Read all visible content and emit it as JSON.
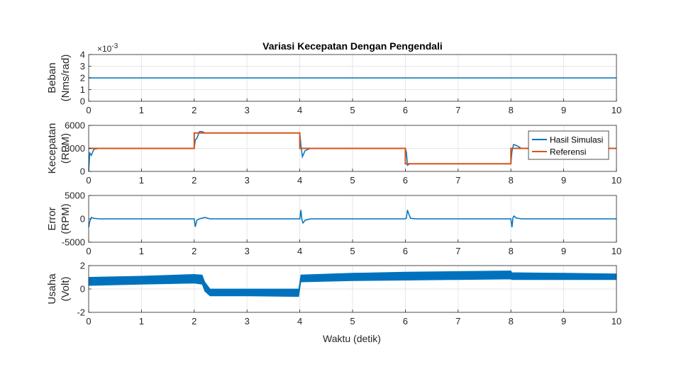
{
  "title": "Variasi Kecepatan Dengan Pengendali",
  "xlabel": "Waktu (detik)",
  "colors": {
    "sim": "#0072BD",
    "ref": "#D95319",
    "grid": "#e6e6e6",
    "axis": "#262626"
  },
  "chart_data": [
    {
      "type": "line",
      "ylabel": [
        "Beban",
        "(Nms/rad)"
      ],
      "exponent": "×10-3",
      "xlim": [
        0,
        10
      ],
      "ylim": [
        0,
        4
      ],
      "xticks": [
        0,
        1,
        2,
        3,
        4,
        5,
        6,
        7,
        8,
        9,
        10
      ],
      "yticks": [
        0,
        1,
        2,
        3,
        4
      ],
      "series": [
        {
          "x": [
            0,
            10
          ],
          "y": [
            2,
            2
          ]
        }
      ]
    },
    {
      "type": "line",
      "ylabel": [
        "Kecepatan",
        "(RPM)"
      ],
      "xlim": [
        0,
        10
      ],
      "ylim": [
        0,
        6000
      ],
      "xticks": [
        0,
        1,
        2,
        3,
        4,
        5,
        6,
        7,
        8,
        9,
        10
      ],
      "yticks": [
        0,
        3000,
        6000
      ],
      "legend_position": "right",
      "series": [
        {
          "name": "Hasil Simulasi",
          "x": [
            0,
            0.02,
            0.05,
            0.1,
            0.2,
            2.0,
            2.02,
            2.05,
            2.1,
            2.15,
            2.2,
            2.3,
            4.0,
            4.02,
            4.05,
            4.1,
            4.2,
            6.0,
            6.02,
            6.04,
            6.08,
            6.15,
            6.25,
            8.0,
            8.02,
            8.05,
            8.1,
            8.2,
            10
          ],
          "y": [
            0,
            2400,
            2100,
            2900,
            3000,
            3000,
            4100,
            4300,
            5200,
            5200,
            5000,
            5000,
            5000,
            3500,
            1900,
            2700,
            3000,
            3000,
            2500,
            800,
            1000,
            1000,
            1000,
            1000,
            2600,
            3500,
            3400,
            3000,
            3000
          ]
        },
        {
          "name": "Referensi",
          "x": [
            0,
            2.0,
            2.0,
            4.0,
            4.0,
            6.0,
            6.0,
            8.0,
            8.0,
            10
          ],
          "y": [
            3000,
            3000,
            5000,
            5000,
            3000,
            3000,
            1000,
            1000,
            3000,
            3000
          ]
        }
      ]
    },
    {
      "type": "line",
      "ylabel": [
        "Error",
        "(RPM)"
      ],
      "xlim": [
        0,
        10
      ],
      "ylim": [
        -5000,
        5000
      ],
      "xticks": [
        0,
        1,
        2,
        3,
        4,
        5,
        6,
        7,
        8,
        9,
        10
      ],
      "yticks": [
        -5000,
        0,
        5000
      ],
      "series": [
        {
          "x": [
            0,
            0.02,
            0.05,
            0.1,
            0.2,
            2.0,
            2.02,
            2.05,
            2.1,
            2.2,
            2.3,
            4.0,
            4.02,
            4.04,
            4.06,
            4.1,
            4.2,
            6.0,
            6.02,
            6.04,
            6.06,
            6.1,
            6.2,
            8.0,
            8.02,
            8.04,
            8.06,
            8.1,
            8.2,
            10
          ],
          "y": [
            -1800,
            -600,
            300,
            100,
            0,
            0,
            -1700,
            -300,
            0,
            300,
            0,
            0,
            1900,
            -200,
            -900,
            -300,
            0,
            0,
            200,
            1900,
            1200,
            100,
            0,
            0,
            -1800,
            300,
            600,
            200,
            0,
            0
          ]
        }
      ]
    },
    {
      "type": "area",
      "ylabel": [
        "Usaha",
        "(Volt)"
      ],
      "xlim": [
        0,
        10
      ],
      "ylim": [
        -2,
        2
      ],
      "xticks": [
        0,
        1,
        2,
        3,
        4,
        5,
        6,
        7,
        8,
        9,
        10
      ],
      "yticks": [
        -2,
        0,
        2
      ],
      "series": [
        {
          "x": [
            0,
            1,
            2,
            2.15,
            2.2,
            2.3,
            3,
            3.98,
            4.02,
            5,
            6,
            7,
            8,
            8.02,
            9,
            10
          ],
          "upper": [
            1.0,
            1.1,
            1.25,
            1.2,
            0.6,
            0.0,
            0.0,
            0.0,
            1.2,
            1.35,
            1.45,
            1.5,
            1.55,
            1.4,
            1.35,
            1.3
          ],
          "lower": [
            0.3,
            0.4,
            0.5,
            0.4,
            -0.2,
            -0.6,
            -0.6,
            -0.65,
            0.6,
            0.7,
            0.75,
            0.8,
            0.85,
            0.8,
            0.8,
            0.8
          ]
        }
      ]
    }
  ]
}
